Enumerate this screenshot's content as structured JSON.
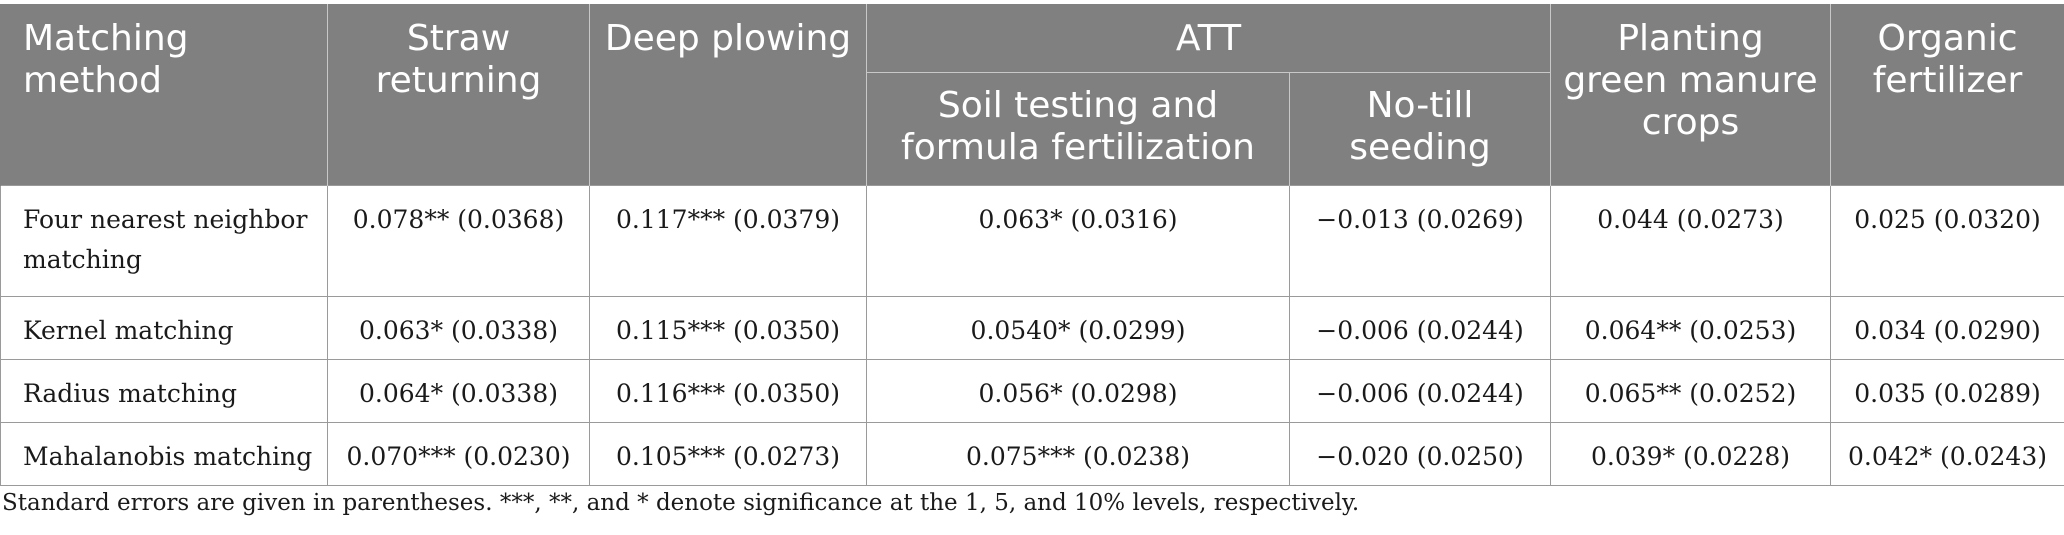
{
  "header": {
    "matching_method": "Matching method",
    "att": "ATT",
    "columns": [
      "Straw returning",
      "Deep plowing",
      "Soil testing and formula fertilization",
      "No-till seeding",
      "Planting green manure crops",
      "Organic fertilizer"
    ]
  },
  "rows": [
    {
      "method": "Four nearest neighbor matching",
      "values": [
        "0.078** (0.0368)",
        "0.117*** (0.0379)",
        "0.063* (0.0316)",
        "−0.013 (0.0269)",
        "0.044 (0.0273)",
        "0.025 (0.0320)"
      ]
    },
    {
      "method": "Kernel matching",
      "values": [
        "0.063* (0.0338)",
        "0.115*** (0.0350)",
        "0.0540* (0.0299)",
        "−0.006 (0.0244)",
        "0.064** (0.0253)",
        "0.034 (0.0290)"
      ]
    },
    {
      "method": "Radius matching",
      "values": [
        "0.064* (0.0338)",
        "0.116*** (0.0350)",
        "0.056* (0.0298)",
        "−0.006 (0.0244)",
        "0.065** (0.0252)",
        "0.035 (0.0289)"
      ]
    },
    {
      "method": "Mahalanobis matching",
      "values": [
        "0.070*** (0.0230)",
        "0.105*** (0.0273)",
        "0.075*** (0.0238)",
        "−0.020 (0.0250)",
        "0.039* (0.0228)",
        "0.042* (0.0243)"
      ]
    }
  ],
  "footnote": "Standard errors are given in parentheses. ***, **, and * denote significance at the 1, 5, and 10% levels, respectively."
}
